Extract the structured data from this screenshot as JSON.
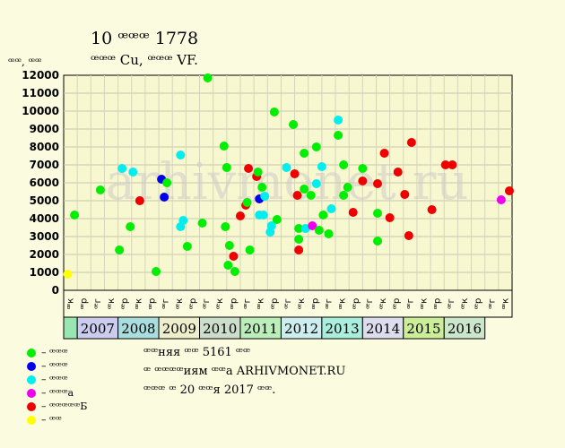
{
  "header": {
    "title": "10 ꟹꟹꟹ 1778",
    "subtitle": "ꟹꟹꟹ Cu, ꟹꟹꟹ VF.",
    "y_unit": "ꟹꟹ, ꟹꟹ"
  },
  "watermark": "arhivmonet.ru",
  "colors": {
    "background": "#fbfbe0",
    "plot_background": "#f8f8d0",
    "green": "#00ee00",
    "blue": "#0000ee",
    "cyan": "#00eeee",
    "magenta": "#ee00ee",
    "red": "#ee0000",
    "yellow": "#ffff00"
  },
  "legend": [
    {
      "label": "– ꟹꟹꟹ",
      "color": "#00ee00"
    },
    {
      "label": "– ꟹꟹꟹ",
      "color": "#0000ee"
    },
    {
      "label": "– ꟹꟹꟹ",
      "color": "#00eeee"
    },
    {
      "label": "– ꟹꟹꟹa",
      "color": "#ee00ee"
    },
    {
      "label": "– ꟹꟹꟹꟹꟹБ",
      "color": "#ee0000"
    },
    {
      "label": "– ꟹꟹ",
      "color": "#ffff00"
    }
  ],
  "notes": [
    "ꟹꟹняя ꟹꟹ 5161 ꟹꟹ",
    "ꟹ ꟹꟹꟹꟹиям ꟹꟹa ARHIVMONET.RU",
    "ꟹꟹꟹ ꟹ 20 ꟹꟹя 2017 ꟹꟹ."
  ],
  "chart_data": {
    "type": "scatter",
    "title": "10 ꟹꟹꟹ 1778",
    "subtitle": "ꟹꟹꟹ Cu, ꟹꟹꟹ VF.",
    "ylabel": "ꟹꟹ, ꟹꟹ",
    "ylim": [
      0,
      12000
    ],
    "yticks": [
      0,
      1000,
      2000,
      3000,
      4000,
      5000,
      6000,
      7000,
      8000,
      9000,
      10000,
      11000,
      12000
    ],
    "x_period_labels": [
      "ꟹк",
      "ꟹр",
      "ꟹг",
      "ꟹк",
      "ꟹр",
      "ꟹк",
      "ꟹр",
      "ꟹг",
      "ꟹк",
      "ꟹр",
      "ꟹг",
      "ꟹк",
      "ꟹр",
      "ꟹг",
      "ꟹк",
      "ꟹр",
      "ꟹг",
      "ꟹк",
      "ꟹр",
      "ꟹг",
      "ꟹк",
      "ꟹр",
      "ꟹг",
      "ꟹк",
      "ꟹр",
      "ꟹг",
      "ꟹк",
      "ꟹр",
      "ꟹг",
      "ꟹк",
      "ꟹр",
      "ꟹг",
      "ꟹк"
    ],
    "years": [
      {
        "label": "",
        "color": "#99e6b3",
        "span": 1
      },
      {
        "label": "2007",
        "color": "#ccccee",
        "span": 3
      },
      {
        "label": "2008",
        "color": "#aadddd",
        "span": 3
      },
      {
        "label": "2009",
        "color": "#eeeecc",
        "span": 3
      },
      {
        "label": "2010",
        "color": "#ccddcc",
        "span": 3
      },
      {
        "label": "2011",
        "color": "#bbeebb",
        "span": 3
      },
      {
        "label": "2012",
        "color": "#cceeee",
        "span": 3
      },
      {
        "label": "2013",
        "color": "#aaeedd",
        "span": 3
      },
      {
        "label": "2014",
        "color": "#ddddee",
        "span": 3
      },
      {
        "label": "2015",
        "color": "#ccee99",
        "span": 3
      },
      {
        "label": "2016",
        "color": "#cce6cc",
        "span": 3
      }
    ],
    "x_range": [
      0,
      33
    ],
    "grid": true,
    "points": [
      {
        "x": 0.3,
        "y": 900,
        "c": "yellow"
      },
      {
        "x": 0.8,
        "y": 4200,
        "c": "green"
      },
      {
        "x": 2.7,
        "y": 5600,
        "c": "green"
      },
      {
        "x": 4.1,
        "y": 2250,
        "c": "green"
      },
      {
        "x": 4.3,
        "y": 6800,
        "c": "cyan"
      },
      {
        "x": 4.9,
        "y": 3550,
        "c": "green"
      },
      {
        "x": 5.1,
        "y": 6600,
        "c": "cyan"
      },
      {
        "x": 5.6,
        "y": 5000,
        "c": "red"
      },
      {
        "x": 6.8,
        "y": 1050,
        "c": "green"
      },
      {
        "x": 7.2,
        "y": 6200,
        "c": "blue"
      },
      {
        "x": 7.4,
        "y": 5200,
        "c": "blue"
      },
      {
        "x": 7.6,
        "y": 6000,
        "c": "green"
      },
      {
        "x": 8.6,
        "y": 7550,
        "c": "cyan"
      },
      {
        "x": 8.6,
        "y": 3550,
        "c": "cyan"
      },
      {
        "x": 8.8,
        "y": 3900,
        "c": "cyan"
      },
      {
        "x": 9.1,
        "y": 2450,
        "c": "green"
      },
      {
        "x": 10.2,
        "y": 3750,
        "c": "green"
      },
      {
        "x": 10.6,
        "y": 11850,
        "c": "green"
      },
      {
        "x": 11.8,
        "y": 8050,
        "c": "green"
      },
      {
        "x": 11.9,
        "y": 3550,
        "c": "green"
      },
      {
        "x": 12.0,
        "y": 6850,
        "c": "green"
      },
      {
        "x": 12.1,
        "y": 1400,
        "c": "green"
      },
      {
        "x": 12.2,
        "y": 2500,
        "c": "green"
      },
      {
        "x": 12.5,
        "y": 1900,
        "c": "red"
      },
      {
        "x": 12.6,
        "y": 1050,
        "c": "green"
      },
      {
        "x": 13.0,
        "y": 4150,
        "c": "red"
      },
      {
        "x": 13.4,
        "y": 4750,
        "c": "red"
      },
      {
        "x": 13.5,
        "y": 4900,
        "c": "green"
      },
      {
        "x": 13.6,
        "y": 6800,
        "c": "red"
      },
      {
        "x": 13.7,
        "y": 2250,
        "c": "green"
      },
      {
        "x": 14.2,
        "y": 6350,
        "c": "red"
      },
      {
        "x": 14.3,
        "y": 6600,
        "c": "green"
      },
      {
        "x": 14.4,
        "y": 5100,
        "c": "blue"
      },
      {
        "x": 14.4,
        "y": 4200,
        "c": "cyan"
      },
      {
        "x": 14.6,
        "y": 5750,
        "c": "green"
      },
      {
        "x": 14.7,
        "y": 4200,
        "c": "cyan"
      },
      {
        "x": 14.8,
        "y": 5250,
        "c": "cyan"
      },
      {
        "x": 15.2,
        "y": 3250,
        "c": "cyan"
      },
      {
        "x": 15.3,
        "y": 3600,
        "c": "cyan"
      },
      {
        "x": 15.5,
        "y": 9950,
        "c": "green"
      },
      {
        "x": 15.7,
        "y": 3950,
        "c": "green"
      },
      {
        "x": 16.4,
        "y": 6850,
        "c": "cyan"
      },
      {
        "x": 16.9,
        "y": 9250,
        "c": "green"
      },
      {
        "x": 17.0,
        "y": 6500,
        "c": "red"
      },
      {
        "x": 17.2,
        "y": 5300,
        "c": "red"
      },
      {
        "x": 17.3,
        "y": 3450,
        "c": "green"
      },
      {
        "x": 17.3,
        "y": 2850,
        "c": "green"
      },
      {
        "x": 17.3,
        "y": 2250,
        "c": "red"
      },
      {
        "x": 17.7,
        "y": 7650,
        "c": "green"
      },
      {
        "x": 17.7,
        "y": 5650,
        "c": "green"
      },
      {
        "x": 17.8,
        "y": 3450,
        "c": "cyan"
      },
      {
        "x": 18.2,
        "y": 5300,
        "c": "green"
      },
      {
        "x": 18.3,
        "y": 3600,
        "c": "magenta"
      },
      {
        "x": 18.6,
        "y": 8000,
        "c": "green"
      },
      {
        "x": 18.6,
        "y": 5950,
        "c": "cyan"
      },
      {
        "x": 18.8,
        "y": 3350,
        "c": "green"
      },
      {
        "x": 19.0,
        "y": 6900,
        "c": "cyan"
      },
      {
        "x": 19.1,
        "y": 4200,
        "c": "green"
      },
      {
        "x": 19.5,
        "y": 3150,
        "c": "green"
      },
      {
        "x": 19.7,
        "y": 4550,
        "c": "cyan"
      },
      {
        "x": 20.2,
        "y": 9500,
        "c": "cyan"
      },
      {
        "x": 20.2,
        "y": 8650,
        "c": "green"
      },
      {
        "x": 20.6,
        "y": 7000,
        "c": "green"
      },
      {
        "x": 20.6,
        "y": 5300,
        "c": "green"
      },
      {
        "x": 20.9,
        "y": 5750,
        "c": "green"
      },
      {
        "x": 21.3,
        "y": 4350,
        "c": "red"
      },
      {
        "x": 22.0,
        "y": 6800,
        "c": "green"
      },
      {
        "x": 22.0,
        "y": 6100,
        "c": "red"
      },
      {
        "x": 23.1,
        "y": 5950,
        "c": "red"
      },
      {
        "x": 23.1,
        "y": 4300,
        "c": "green"
      },
      {
        "x": 23.1,
        "y": 2750,
        "c": "green"
      },
      {
        "x": 23.6,
        "y": 7650,
        "c": "red"
      },
      {
        "x": 24.0,
        "y": 4050,
        "c": "red"
      },
      {
        "x": 24.6,
        "y": 6600,
        "c": "red"
      },
      {
        "x": 25.1,
        "y": 5350,
        "c": "red"
      },
      {
        "x": 25.4,
        "y": 3050,
        "c": "red"
      },
      {
        "x": 25.6,
        "y": 8250,
        "c": "red"
      },
      {
        "x": 27.1,
        "y": 4500,
        "c": "red"
      },
      {
        "x": 28.1,
        "y": 7000,
        "c": "red"
      },
      {
        "x": 28.6,
        "y": 7000,
        "c": "red"
      },
      {
        "x": 32.2,
        "y": 5050,
        "c": "magenta"
      },
      {
        "x": 32.8,
        "y": 5550,
        "c": "red"
      }
    ]
  }
}
